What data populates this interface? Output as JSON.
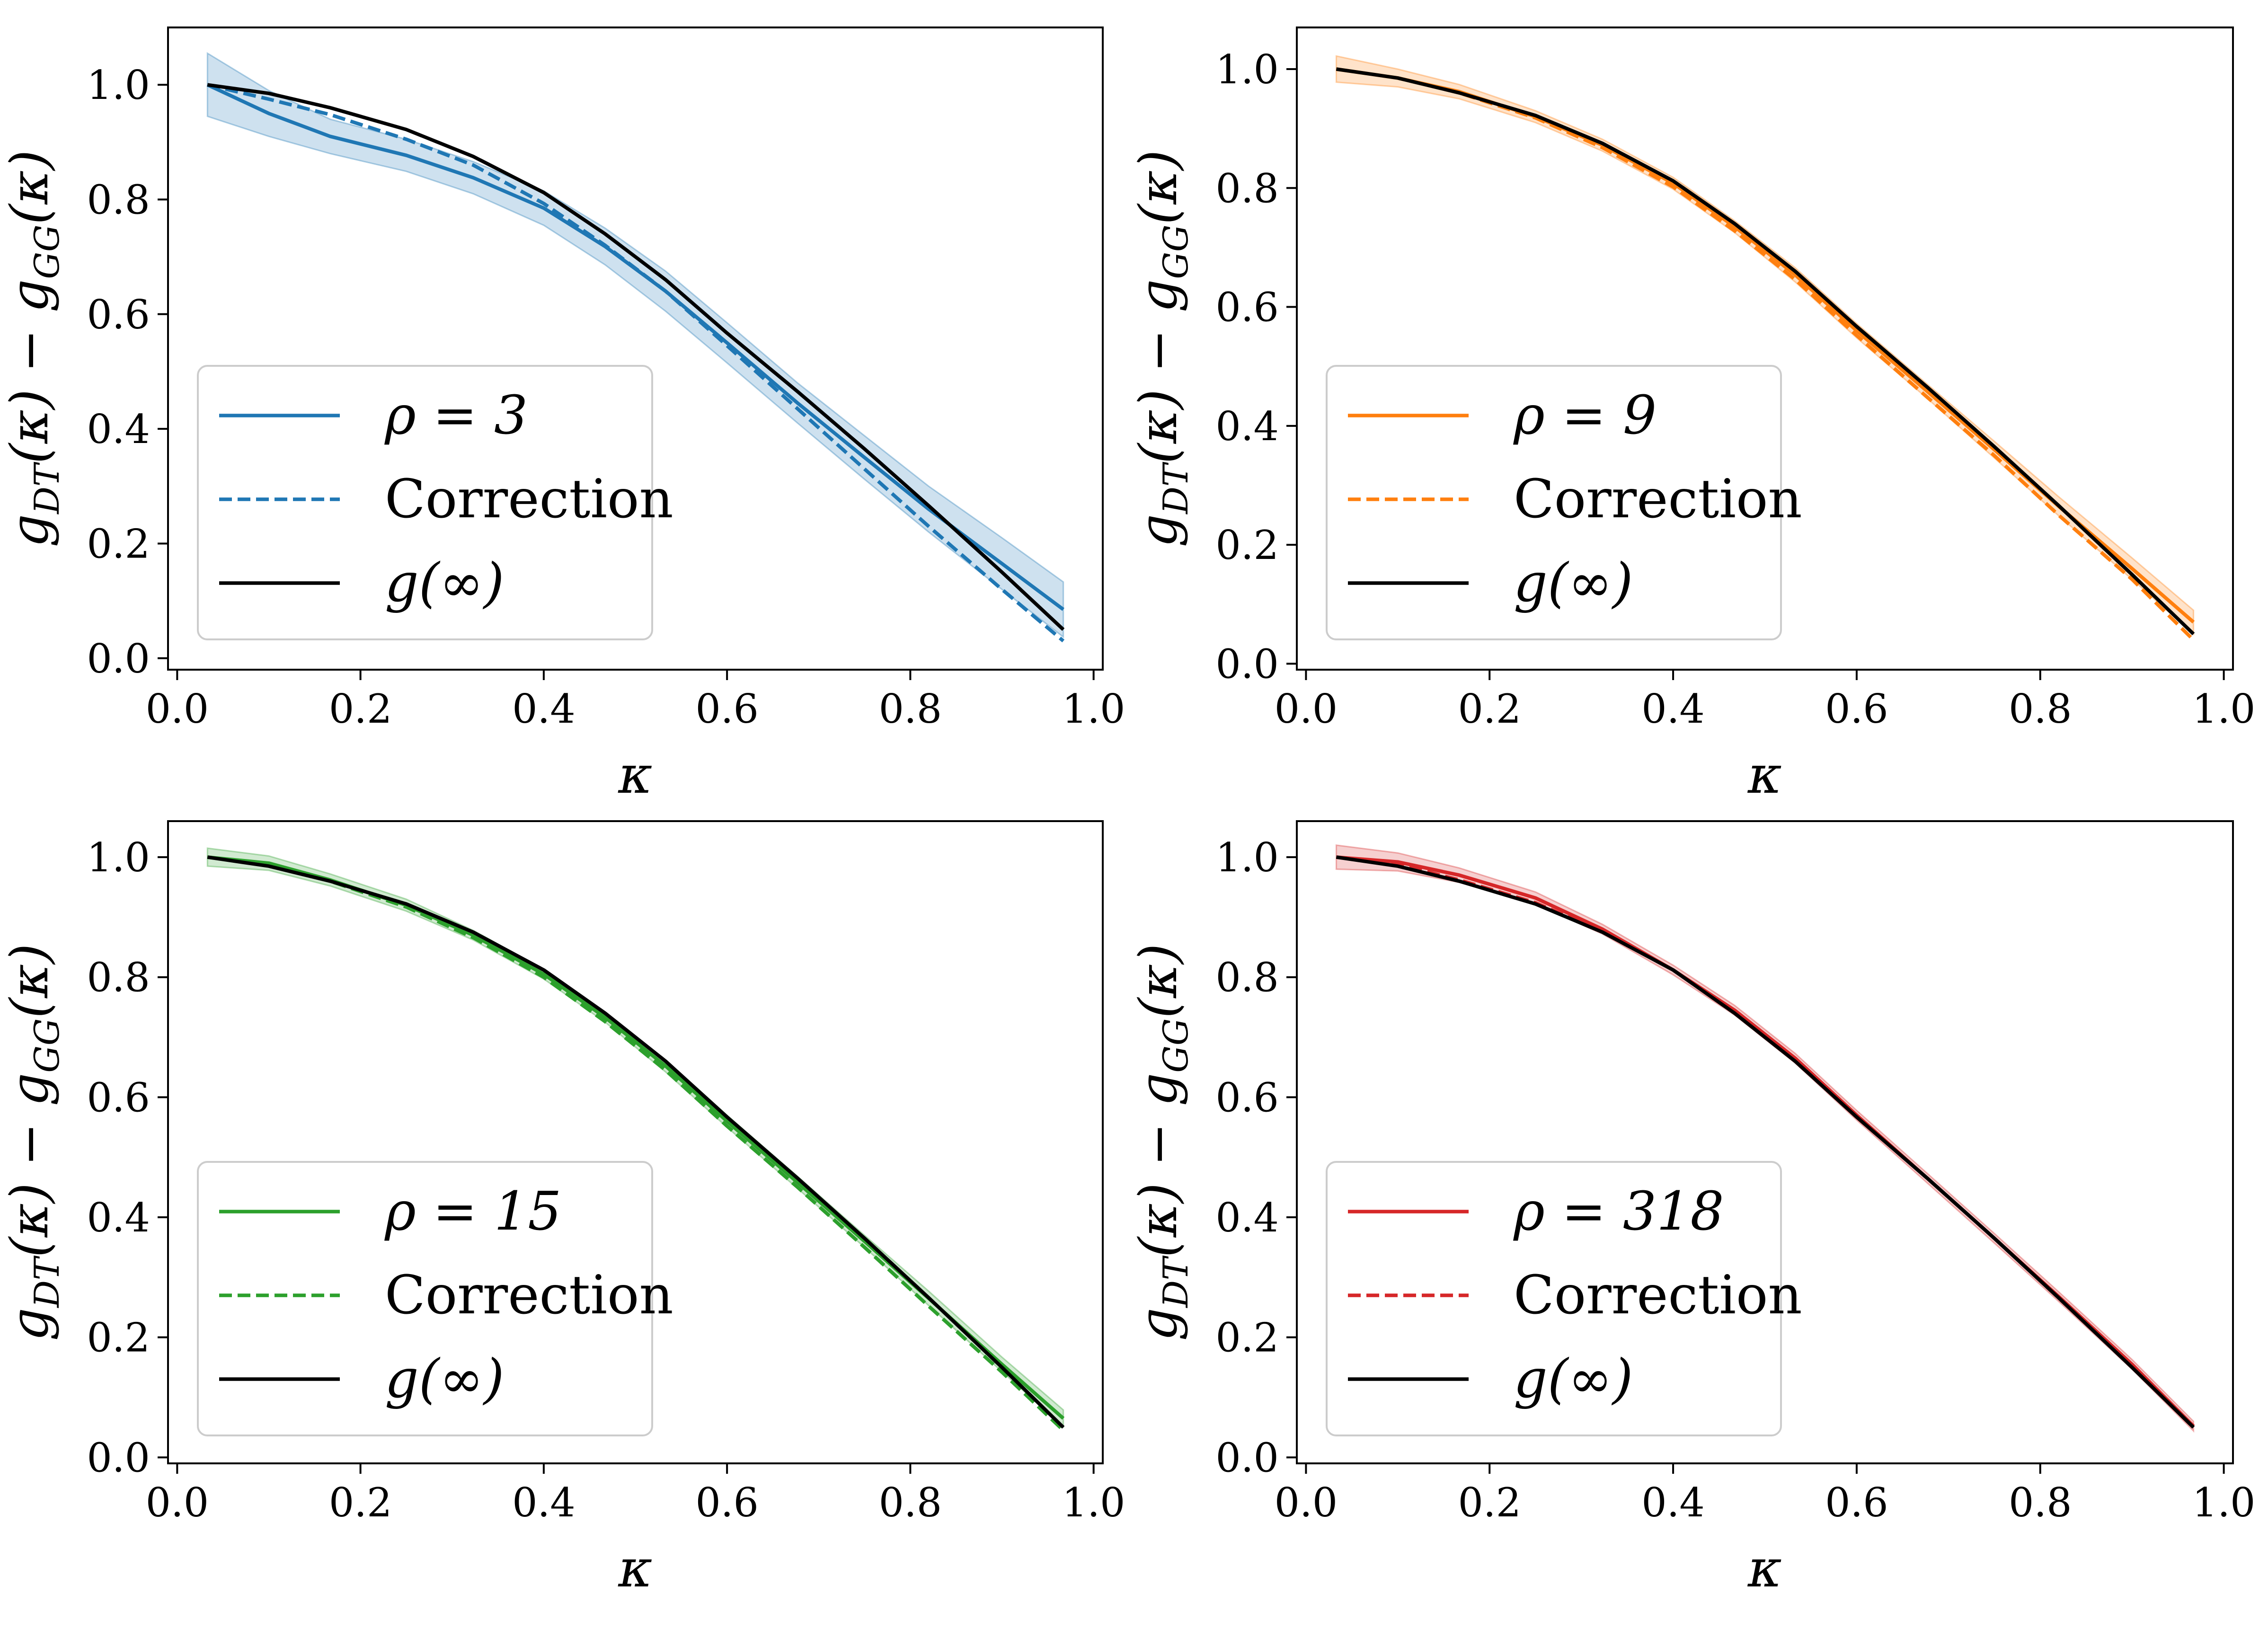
{
  "chart_data": [
    {
      "type": "line",
      "xlabel": "κ",
      "ylabel": {
        "base_left": "g",
        "sub_left": "DT",
        "mid": "(κ) − g",
        "sub_right": "GG",
        "end": "(κ)"
      },
      "xlim": [
        -0.01,
        1.01
      ],
      "ylim": [
        -0.02,
        1.1
      ],
      "xticks": [
        "0.0",
        "0.2",
        "0.4",
        "0.6",
        "0.8",
        "1.0"
      ],
      "yticks": [
        "0.0",
        "0.2",
        "0.4",
        "0.6",
        "0.8",
        "1.0"
      ],
      "color": "#1f77b4",
      "legend": {
        "rho_label": "ρ = 3",
        "correction_label": "Correction",
        "ginf_label": "g(∞)"
      },
      "x": [
        0.033,
        0.1,
        0.167,
        0.25,
        0.323,
        0.4,
        0.467,
        0.533,
        0.6,
        0.677,
        0.75,
        0.82,
        0.9,
        0.967
      ],
      "series": [
        {
          "name": "ρ = 3",
          "style": "solid",
          "values": [
            1.0,
            0.95,
            0.91,
            0.877,
            0.838,
            0.785,
            0.718,
            0.64,
            0.55,
            0.445,
            0.35,
            0.26,
            0.165,
            0.085
          ],
          "band": [
            0.055,
            0.04,
            0.03,
            0.028,
            0.028,
            0.03,
            0.032,
            0.035,
            0.035,
            0.035,
            0.038,
            0.04,
            0.045,
            0.048
          ]
        },
        {
          "name": "Correction",
          "style": "dashed",
          "values": [
            1.0,
            0.975,
            0.948,
            0.905,
            0.86,
            0.793,
            0.72,
            0.64,
            0.545,
            0.435,
            0.33,
            0.23,
            0.12,
            0.03
          ]
        },
        {
          "name": "g(∞)",
          "style": "solid",
          "color": "#000000",
          "values": [
            1.0,
            0.985,
            0.96,
            0.922,
            0.875,
            0.812,
            0.74,
            0.66,
            0.567,
            0.465,
            0.365,
            0.266,
            0.15,
            0.05
          ]
        }
      ]
    },
    {
      "type": "line",
      "xlabel": "κ",
      "ylabel": {
        "base_left": "g",
        "sub_left": "DT",
        "mid": "(κ) − g",
        "sub_right": "GG",
        "end": "(κ)"
      },
      "xlim": [
        -0.01,
        1.01
      ],
      "ylim": [
        -0.01,
        1.07
      ],
      "xticks": [
        "0.0",
        "0.2",
        "0.4",
        "0.6",
        "0.8",
        "1.0"
      ],
      "yticks": [
        "0.0",
        "0.2",
        "0.4",
        "0.6",
        "0.8",
        "1.0"
      ],
      "color": "#ff7f0e",
      "legend": {
        "rho_label": "ρ = 9",
        "correction_label": "Correction",
        "ginf_label": "g(∞)"
      },
      "x": [
        0.033,
        0.1,
        0.167,
        0.25,
        0.323,
        0.4,
        0.467,
        0.533,
        0.6,
        0.677,
        0.75,
        0.82,
        0.9,
        0.967
      ],
      "series": [
        {
          "name": "ρ = 9",
          "style": "solid",
          "values": [
            1.0,
            0.985,
            0.962,
            0.92,
            0.872,
            0.808,
            0.735,
            0.654,
            0.56,
            0.458,
            0.36,
            0.265,
            0.16,
            0.07
          ],
          "band": [
            0.022,
            0.015,
            0.012,
            0.01,
            0.01,
            0.01,
            0.01,
            0.012,
            0.012,
            0.012,
            0.014,
            0.016,
            0.018,
            0.02
          ]
        },
        {
          "name": "Correction",
          "style": "dashed",
          "values": [
            1.0,
            0.985,
            0.96,
            0.918,
            0.868,
            0.802,
            0.728,
            0.646,
            0.552,
            0.448,
            0.35,
            0.25,
            0.142,
            0.04
          ]
        },
        {
          "name": "g(∞)",
          "style": "solid",
          "color": "#000000",
          "values": [
            1.0,
            0.985,
            0.96,
            0.922,
            0.875,
            0.812,
            0.74,
            0.66,
            0.567,
            0.465,
            0.365,
            0.266,
            0.15,
            0.05
          ]
        }
      ]
    },
    {
      "type": "line",
      "xlabel": "κ",
      "ylabel": {
        "base_left": "g",
        "sub_left": "DT",
        "mid": "(κ) − g",
        "sub_right": "GG",
        "end": "(κ)"
      },
      "xlim": [
        -0.01,
        1.01
      ],
      "ylim": [
        -0.01,
        1.06
      ],
      "xticks": [
        "0.0",
        "0.2",
        "0.4",
        "0.6",
        "0.8",
        "1.0"
      ],
      "yticks": [
        "0.0",
        "0.2",
        "0.4",
        "0.6",
        "0.8",
        "1.0"
      ],
      "color": "#2ca02c",
      "legend": {
        "rho_label": "ρ = 15",
        "correction_label": "Correction",
        "ginf_label": "g(∞)"
      },
      "x": [
        0.033,
        0.1,
        0.167,
        0.25,
        0.323,
        0.4,
        0.467,
        0.533,
        0.6,
        0.677,
        0.75,
        0.82,
        0.9,
        0.967
      ],
      "series": [
        {
          "name": "ρ = 15",
          "style": "solid",
          "values": [
            1.0,
            0.99,
            0.962,
            0.92,
            0.87,
            0.805,
            0.733,
            0.652,
            0.56,
            0.458,
            0.36,
            0.265,
            0.155,
            0.065
          ],
          "band": [
            0.015,
            0.012,
            0.01,
            0.01,
            0.008,
            0.008,
            0.008,
            0.01,
            0.01,
            0.01,
            0.01,
            0.012,
            0.012,
            0.014
          ]
        },
        {
          "name": "Correction",
          "style": "dashed",
          "values": [
            1.0,
            0.987,
            0.96,
            0.917,
            0.866,
            0.8,
            0.726,
            0.645,
            0.552,
            0.45,
            0.35,
            0.252,
            0.142,
            0.045
          ]
        },
        {
          "name": "g(∞)",
          "style": "solid",
          "color": "#000000",
          "values": [
            1.0,
            0.985,
            0.96,
            0.922,
            0.875,
            0.812,
            0.74,
            0.66,
            0.567,
            0.465,
            0.365,
            0.266,
            0.15,
            0.05
          ]
        }
      ]
    },
    {
      "type": "line",
      "xlabel": "κ",
      "ylabel": {
        "base_left": "g",
        "sub_left": "DT",
        "mid": "(κ) − g",
        "sub_right": "GG",
        "end": "(κ)"
      },
      "xlim": [
        -0.01,
        1.01
      ],
      "ylim": [
        -0.01,
        1.06
      ],
      "xticks": [
        "0.0",
        "0.2",
        "0.4",
        "0.6",
        "0.8",
        "1.0"
      ],
      "yticks": [
        "0.0",
        "0.2",
        "0.4",
        "0.6",
        "0.8",
        "1.0"
      ],
      "color": "#d62728",
      "legend": {
        "rho_label": "ρ = 318",
        "correction_label": "Correction",
        "ginf_label": "g(∞)"
      },
      "x": [
        0.033,
        0.1,
        0.167,
        0.25,
        0.323,
        0.4,
        0.467,
        0.533,
        0.6,
        0.677,
        0.75,
        0.82,
        0.9,
        0.967
      ],
      "series": [
        {
          "name": "ρ = 318",
          "style": "solid",
          "values": [
            1.0,
            0.992,
            0.97,
            0.932,
            0.88,
            0.812,
            0.745,
            0.665,
            0.57,
            0.465,
            0.365,
            0.268,
            0.155,
            0.052
          ],
          "band": [
            0.02,
            0.015,
            0.012,
            0.01,
            0.008,
            0.008,
            0.008,
            0.008,
            0.008,
            0.008,
            0.008,
            0.008,
            0.008,
            0.008
          ]
        },
        {
          "name": "Correction",
          "style": "dashed",
          "values": [
            1.0,
            0.988,
            0.962,
            0.924,
            0.876,
            0.812,
            0.74,
            0.66,
            0.567,
            0.465,
            0.365,
            0.266,
            0.15,
            0.05
          ]
        },
        {
          "name": "g(∞)",
          "style": "solid",
          "color": "#000000",
          "values": [
            1.0,
            0.985,
            0.96,
            0.922,
            0.875,
            0.812,
            0.74,
            0.66,
            0.567,
            0.465,
            0.365,
            0.266,
            0.15,
            0.05
          ]
        }
      ]
    }
  ]
}
